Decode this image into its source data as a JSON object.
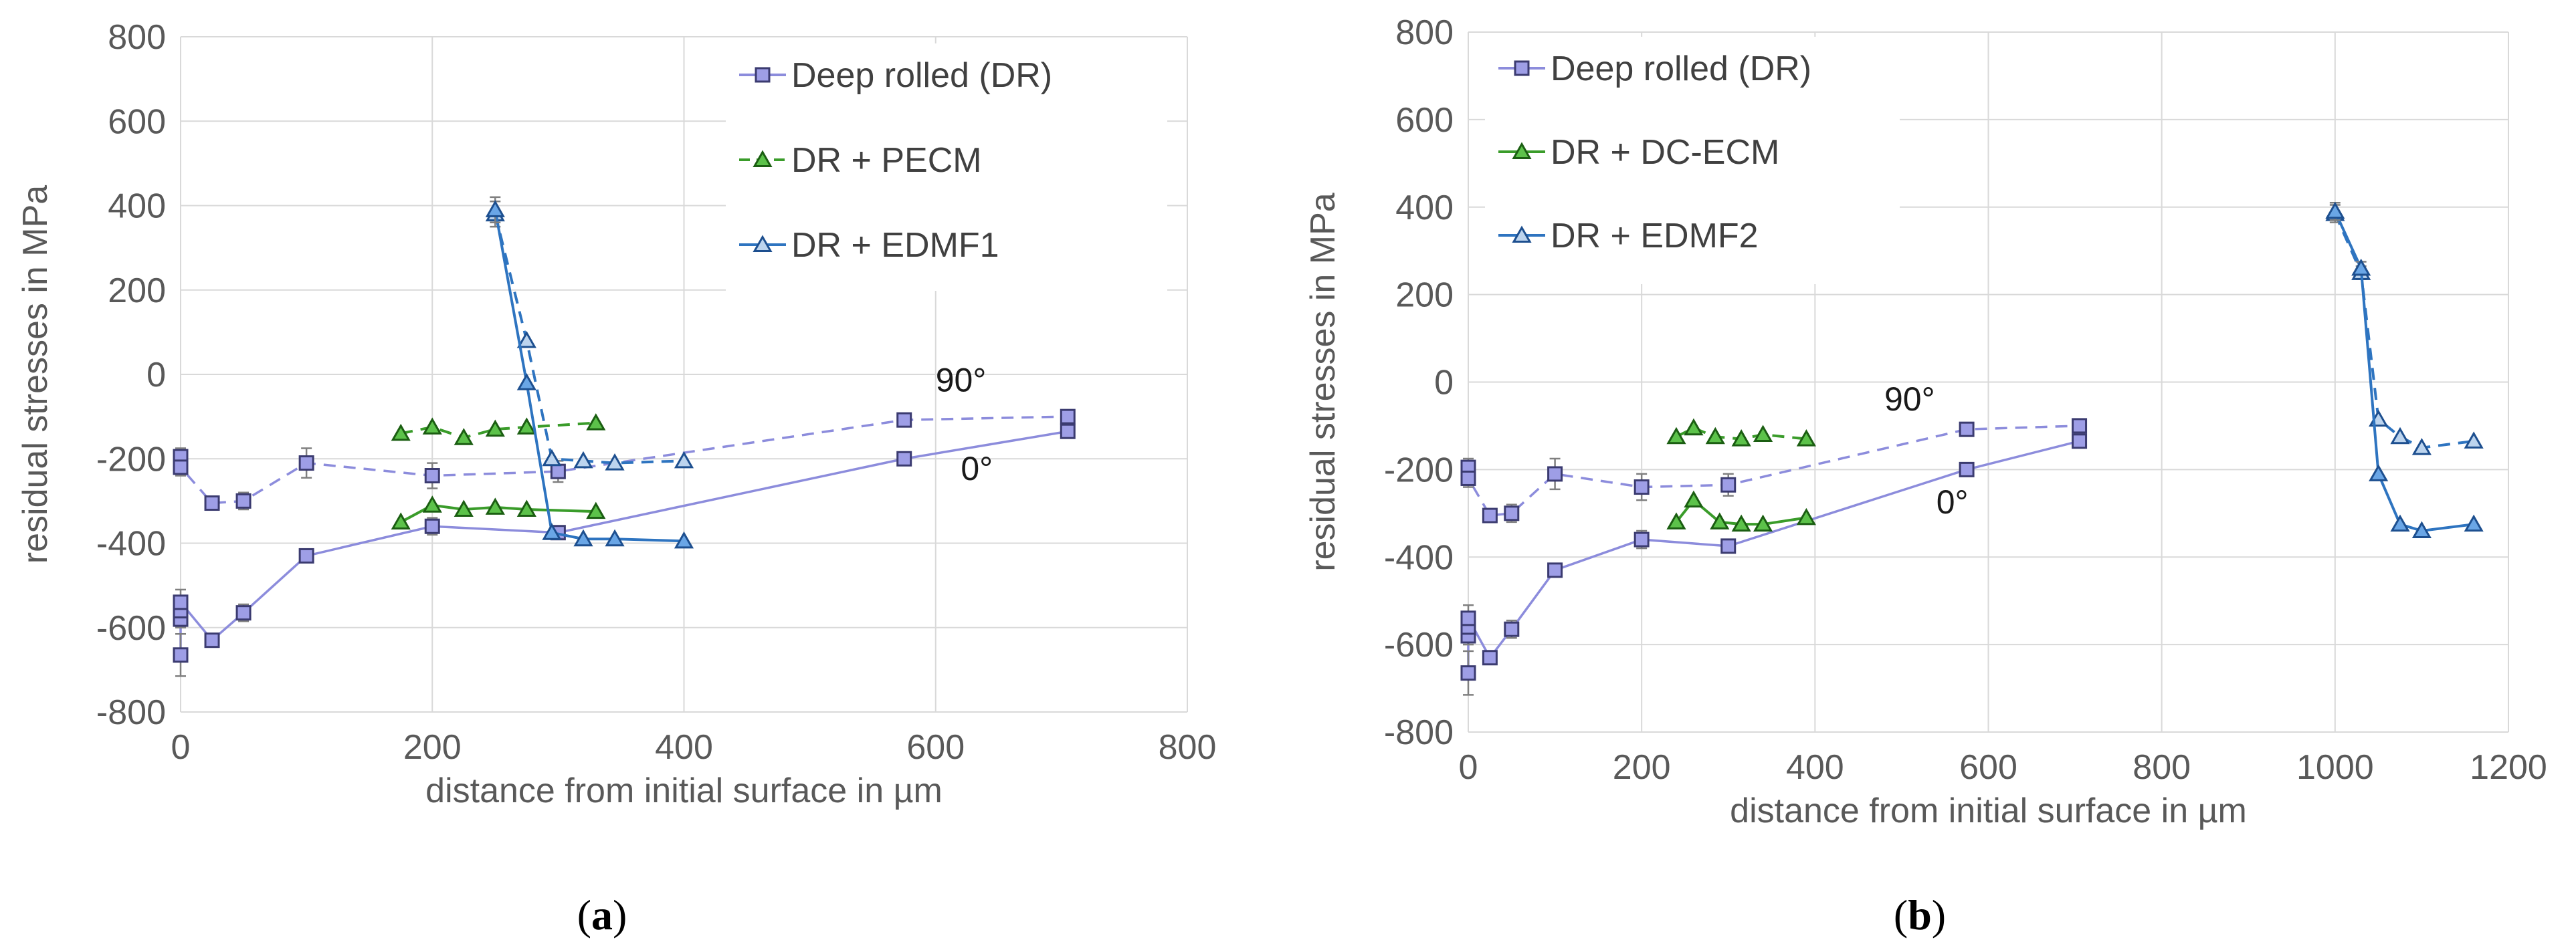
{
  "chart_data": [
    {
      "type": "line",
      "caption": "a",
      "xlabel": "distance from initial surface in µm",
      "ylabel": "residual stresses in MPa",
      "xlim": [
        0,
        800
      ],
      "ylim": [
        -800,
        800
      ],
      "xticks": [
        0,
        200,
        400,
        600,
        800
      ],
      "yticks": [
        -800,
        -600,
        -400,
        -200,
        0,
        200,
        400,
        600,
        800
      ],
      "grid": true,
      "legend_position": "top-right",
      "legend": [
        {
          "label": "Deep rolled (DR)",
          "marker": "square",
          "color": "#8c8cdc",
          "dash": false
        },
        {
          "label": "DR + PECM",
          "marker": "triangle",
          "color": "#3a9c2a",
          "dash": true
        },
        {
          "label": "DR + EDMF1",
          "marker": "triangle-open",
          "color": "#2e74c0",
          "dash": false
        }
      ],
      "annotations": [
        {
          "text": "90°",
          "x": 600,
          "y": -40
        },
        {
          "text": "0°",
          "x": 620,
          "y": -250
        }
      ],
      "series": [
        {
          "name": "Deep rolled (DR) 90°",
          "marker": "square",
          "color": "#8c8cdc",
          "dash": true,
          "x": [
            0,
            0,
            25,
            50,
            100,
            200,
            300,
            575,
            705
          ],
          "y": [
            -195,
            -220,
            -305,
            -300,
            -210,
            -240,
            -230,
            -108,
            -100
          ],
          "err": [
            20,
            20,
            15,
            20,
            35,
            30,
            25,
            10,
            10
          ]
        },
        {
          "name": "Deep rolled (DR) 0°",
          "marker": "square",
          "color": "#8c8cdc",
          "dash": false,
          "x": [
            0,
            0,
            0,
            0,
            25,
            50,
            100,
            200,
            300,
            575,
            705
          ],
          "y": [
            -665,
            -580,
            -560,
            -540,
            -630,
            -565,
            -430,
            -360,
            -375,
            -200,
            -135
          ],
          "err": [
            50,
            20,
            20,
            30,
            15,
            20,
            15,
            20,
            15,
            10,
            10
          ]
        },
        {
          "name": "DR + PECM 90°",
          "marker": "triangle",
          "color": "#3a9c2a",
          "dash": true,
          "x": [
            175,
            200,
            225,
            250,
            275,
            330
          ],
          "y": [
            -140,
            -125,
            -150,
            -130,
            -125,
            -115
          ],
          "err": []
        },
        {
          "name": "DR + PECM 0°",
          "marker": "triangle",
          "color": "#3a9c2a",
          "dash": false,
          "x": [
            175,
            200,
            225,
            250,
            275,
            330
          ],
          "y": [
            -350,
            -310,
            -320,
            -315,
            -320,
            -325
          ],
          "err": []
        },
        {
          "name": "DR + EDMF1 90°",
          "marker": "triangle-open",
          "color": "#2e74c0",
          "dash": true,
          "x": [
            250,
            275,
            295,
            320,
            345,
            400
          ],
          "y": [
            380,
            80,
            -200,
            -205,
            -210,
            -205
          ],
          "err": [
            30,
            0,
            0,
            0,
            0,
            0
          ]
        },
        {
          "name": "DR + EDMF1 0°",
          "marker": "triangle",
          "color": "#2e74c0",
          "dash": false,
          "x": [
            250,
            275,
            295,
            320,
            345,
            400
          ],
          "y": [
            390,
            -20,
            -375,
            -390,
            -390,
            -395
          ],
          "err": [
            30,
            0,
            0,
            0,
            0,
            0
          ]
        }
      ]
    },
    {
      "type": "line",
      "caption": "b",
      "xlabel": "distance from initial surface in µm",
      "ylabel": "residual stresses in MPa",
      "xlim": [
        0,
        1200
      ],
      "ylim": [
        -800,
        800
      ],
      "xticks": [
        0,
        200,
        400,
        600,
        800,
        1000,
        1200
      ],
      "yticks": [
        -800,
        -600,
        -400,
        -200,
        0,
        200,
        400,
        600,
        800
      ],
      "grid": true,
      "legend_position": "top-left",
      "legend": [
        {
          "label": "Deep rolled (DR)",
          "marker": "square",
          "color": "#8c8cdc",
          "dash": false
        },
        {
          "label": "DR + DC-ECM",
          "marker": "triangle",
          "color": "#3a9c2a",
          "dash": false
        },
        {
          "label": "DR + EDMF2",
          "marker": "triangle-open",
          "color": "#2e74c0",
          "dash": false
        }
      ],
      "annotations": [
        {
          "text": "90°",
          "x": 480,
          "y": -65
        },
        {
          "text": "0°",
          "x": 540,
          "y": -300
        }
      ],
      "series": [
        {
          "name": "Deep rolled (DR) 90°",
          "marker": "square",
          "color": "#8c8cdc",
          "dash": true,
          "x": [
            0,
            0,
            25,
            50,
            100,
            200,
            300,
            575,
            705
          ],
          "y": [
            -195,
            -220,
            -305,
            -300,
            -210,
            -240,
            -235,
            -108,
            -100
          ],
          "err": [
            20,
            20,
            15,
            20,
            35,
            30,
            25,
            10,
            10
          ]
        },
        {
          "name": "Deep rolled (DR) 0°",
          "marker": "square",
          "color": "#8c8cdc",
          "dash": false,
          "x": [
            0,
            0,
            0,
            0,
            25,
            50,
            100,
            200,
            300,
            575,
            705
          ],
          "y": [
            -665,
            -580,
            -560,
            -540,
            -630,
            -565,
            -430,
            -360,
            -375,
            -200,
            -135
          ],
          "err": [
            50,
            20,
            20,
            30,
            15,
            20,
            15,
            20,
            15,
            10,
            10
          ]
        },
        {
          "name": "DR + DC-ECM 90°",
          "marker": "triangle",
          "color": "#3a9c2a",
          "dash": true,
          "x": [
            240,
            260,
            285,
            315,
            340,
            390
          ],
          "y": [
            -125,
            -105,
            -125,
            -130,
            -120,
            -130
          ],
          "err": []
        },
        {
          "name": "DR + DC-ECM 0°",
          "marker": "triangle",
          "color": "#3a9c2a",
          "dash": false,
          "x": [
            240,
            260,
            290,
            315,
            340,
            390
          ],
          "y": [
            -320,
            -270,
            -320,
            -325,
            -325,
            -310
          ],
          "err": []
        },
        {
          "name": "DR + EDMF2 90°",
          "marker": "triangle-open",
          "color": "#2e74c0",
          "dash": true,
          "x": [
            1000,
            1030,
            1050,
            1075,
            1100,
            1160
          ],
          "y": [
            385,
            250,
            -85,
            -125,
            -150,
            -135
          ],
          "err": [
            20,
            15,
            0,
            0,
            0,
            0
          ]
        },
        {
          "name": "DR + EDMF2 0°",
          "marker": "triangle",
          "color": "#2e74c0",
          "dash": false,
          "x": [
            1000,
            1030,
            1050,
            1075,
            1100,
            1160
          ],
          "y": [
            390,
            260,
            -210,
            -325,
            -340,
            -325
          ],
          "err": [
            20,
            15,
            0,
            0,
            0,
            0
          ]
        }
      ]
    }
  ]
}
